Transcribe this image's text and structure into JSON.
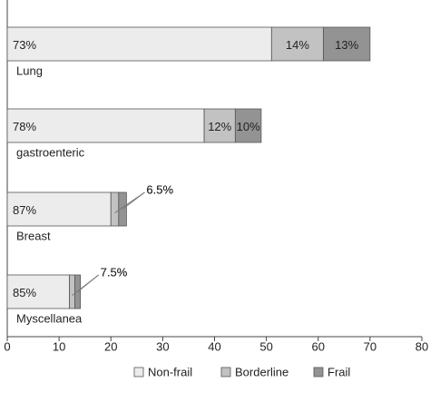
{
  "chart_data": {
    "type": "stacked-barh",
    "categories": [
      "Lung",
      "gastroenteric",
      "Breast",
      "Myscellanea"
    ],
    "series": [
      {
        "name": "Non-frail",
        "color": "#ececec",
        "values": [
          51,
          38,
          20,
          12
        ],
        "value_labels": [
          "73%",
          "78%",
          "87%",
          "85%"
        ]
      },
      {
        "name": "Borderline",
        "color": "#c2c2c2",
        "values": [
          10,
          6,
          1.5,
          1.06
        ],
        "value_labels": [
          "14%",
          "12%",
          "6.5%",
          "7.5%"
        ]
      },
      {
        "name": "Frail",
        "color": "#939393",
        "values": [
          9,
          5,
          1.5,
          1.06
        ],
        "value_labels": [
          "13%",
          "10%",
          "6.5%",
          "7.5%"
        ]
      }
    ],
    "xlim": [
      0,
      80
    ],
    "xticks": [
      0,
      10,
      20,
      30,
      40,
      50,
      60,
      70,
      80
    ],
    "legend": "bottom"
  }
}
